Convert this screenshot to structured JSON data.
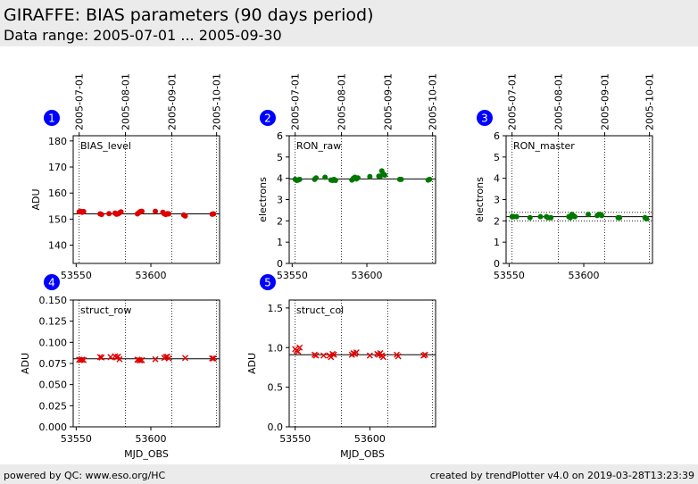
{
  "header": {
    "title": "GIRAFFE: BIAS parameters (90 days period)",
    "subtitle": "Data range: 2005-07-01 ... 2005-09-30"
  },
  "footer": {
    "left": "powered by QC: www.eso.org/HC",
    "right": "created by trendPlotter v4.0 on 2019-03-28T13:23:39"
  },
  "colors": {
    "red": "#dd0000",
    "green": "#007700",
    "badge": "#0000ff"
  },
  "chart_data": [
    {
      "badge": "1",
      "type": "scatter",
      "marker": "dot",
      "color": "#dd0000",
      "label": "BIAS_level",
      "ylabel": "ADU",
      "xlabel": "",
      "xlim": [
        53548,
        53646
      ],
      "ylim": [
        133,
        182
      ],
      "yticks": [
        140,
        150,
        160,
        170,
        180
      ],
      "ytick_labels": [
        "140",
        "150",
        "160",
        "170",
        "180"
      ],
      "xticks": [
        53550,
        53600
      ],
      "xtick_labels": [
        "53550",
        "53600"
      ],
      "date_ticks": [
        53552,
        53583,
        53614,
        53644
      ],
      "date_labels": [
        "2005-07-01",
        "2005-08-01",
        "2005-09-01",
        "2005-10-01"
      ],
      "hlines": [
        152
      ],
      "points": [
        [
          53552,
          152.8
        ],
        [
          53553,
          153
        ],
        [
          53554,
          152.6
        ],
        [
          53555,
          152.9
        ],
        [
          53566,
          152
        ],
        [
          53567,
          151.8
        ],
        [
          53572,
          152.1
        ],
        [
          53576,
          152.3
        ],
        [
          53577,
          151.9
        ],
        [
          53578,
          152
        ],
        [
          53579,
          152.4
        ],
        [
          53580,
          152.8
        ],
        [
          53591,
          152
        ],
        [
          53592,
          152.5
        ],
        [
          53593,
          152.9
        ],
        [
          53594,
          153
        ],
        [
          53603,
          153
        ],
        [
          53608,
          152.6
        ],
        [
          53609,
          152
        ],
        [
          53610,
          151.8
        ],
        [
          53611,
          152.1
        ],
        [
          53612,
          152
        ],
        [
          53622,
          151.6
        ],
        [
          53623,
          151.2
        ],
        [
          53641,
          151.9
        ],
        [
          53642,
          152
        ]
      ]
    },
    {
      "badge": "2",
      "type": "scatter",
      "marker": "dot",
      "color": "#007700",
      "label": "RON_raw",
      "ylabel": "electrons",
      "xlabel": "",
      "xlim": [
        53548,
        53646
      ],
      "ylim": [
        0,
        6
      ],
      "yticks": [
        0,
        1,
        2,
        3,
        4,
        5,
        6
      ],
      "ytick_labels": [
        "0",
        "1",
        "2",
        "3",
        "4",
        "5",
        "6"
      ],
      "xticks": [
        53550,
        53600
      ],
      "xtick_labels": [
        "53550",
        "53600"
      ],
      "date_ticks": [
        53552,
        53583,
        53614,
        53644
      ],
      "date_labels": [
        "2005-07-01",
        "2005-08-01",
        "2005-09-01",
        "2005-10-01"
      ],
      "hlines": [
        3.97
      ],
      "points": [
        [
          53552,
          3.95
        ],
        [
          53553,
          3.9
        ],
        [
          53554,
          3.92
        ],
        [
          53555,
          3.95
        ],
        [
          53565,
          3.95
        ],
        [
          53566,
          4.02
        ],
        [
          53572,
          4.05
        ],
        [
          53576,
          3.92
        ],
        [
          53577,
          3.9
        ],
        [
          53578,
          3.95
        ],
        [
          53579,
          3.9
        ],
        [
          53590,
          3.92
        ],
        [
          53591,
          4.0
        ],
        [
          53592,
          4.05
        ],
        [
          53593,
          3.97
        ],
        [
          53594,
          4.02
        ],
        [
          53602,
          4.08
        ],
        [
          53608,
          4.1
        ],
        [
          53609,
          4.1
        ],
        [
          53610,
          4.35
        ],
        [
          53611,
          4.2
        ],
        [
          53612,
          4.15
        ],
        [
          53622,
          3.95
        ],
        [
          53623,
          3.95
        ],
        [
          53641,
          3.92
        ],
        [
          53642,
          3.95
        ]
      ]
    },
    {
      "badge": "3",
      "type": "scatter",
      "marker": "dot",
      "color": "#007700",
      "label": "RON_master",
      "ylabel": "electrons",
      "xlabel": "",
      "xlim": [
        53548,
        53646
      ],
      "ylim": [
        0,
        6
      ],
      "yticks": [
        0,
        1,
        2,
        3,
        4,
        5,
        6
      ],
      "ytick_labels": [
        "0",
        "1",
        "2",
        "3",
        "4",
        "5",
        "6"
      ],
      "xticks": [
        53550,
        53600
      ],
      "xtick_labels": [
        "53550",
        "53600"
      ],
      "date_ticks": [
        53552,
        53583,
        53614,
        53644
      ],
      "date_labels": [
        "2005-07-01",
        "2005-08-01",
        "2005-09-01",
        "2005-10-01"
      ],
      "hlines": [
        2.2
      ],
      "dotted_hlines": [
        2.4,
        2.0
      ],
      "points": [
        [
          53552,
          2.2
        ],
        [
          53553,
          2.2
        ],
        [
          53555,
          2.2
        ],
        [
          53564,
          2.15
        ],
        [
          53571,
          2.2
        ],
        [
          53575,
          2.2
        ],
        [
          53576,
          2.15
        ],
        [
          53578,
          2.15
        ],
        [
          53590,
          2.2
        ],
        [
          53591,
          2.15
        ],
        [
          53592,
          2.3
        ],
        [
          53593,
          2.25
        ],
        [
          53594,
          2.2
        ],
        [
          53603,
          2.3
        ],
        [
          53609,
          2.25
        ],
        [
          53610,
          2.3
        ],
        [
          53611,
          2.3
        ],
        [
          53612,
          2.25
        ],
        [
          53623,
          2.15
        ],
        [
          53624,
          2.15
        ],
        [
          53641,
          2.15
        ],
        [
          53642,
          2.1
        ]
      ]
    },
    {
      "badge": "4",
      "type": "scatter",
      "marker": "x",
      "color": "#dd0000",
      "label": "struct_row",
      "ylabel": "ADU",
      "xlabel": "MJD_OBS",
      "xlim": [
        53548,
        53646
      ],
      "ylim": [
        0,
        0.15
      ],
      "yticks": [
        0,
        0.025,
        0.05,
        0.075,
        0.1,
        0.125,
        0.15
      ],
      "ytick_labels": [
        "0.000",
        "0.025",
        "0.050",
        "0.075",
        "0.100",
        "0.125",
        "0.150"
      ],
      "xticks": [
        53550,
        53600
      ],
      "xtick_labels": [
        "53550",
        "53600"
      ],
      "date_ticks": [
        53552,
        53583,
        53614,
        53644
      ],
      "date_labels": [],
      "hlines": [
        0.0805
      ],
      "points": [
        [
          53552,
          0.0795
        ],
        [
          53553,
          0.079
        ],
        [
          53554,
          0.0795
        ],
        [
          53555,
          0.079
        ],
        [
          53566,
          0.0825
        ],
        [
          53567,
          0.082
        ],
        [
          53573,
          0.0825
        ],
        [
          53576,
          0.0835
        ],
        [
          53577,
          0.082
        ],
        [
          53578,
          0.083
        ],
        [
          53579,
          0.08
        ],
        [
          53591,
          0.0795
        ],
        [
          53592,
          0.079
        ],
        [
          53593,
          0.0785
        ],
        [
          53594,
          0.079
        ],
        [
          53603,
          0.08
        ],
        [
          53609,
          0.0815
        ],
        [
          53610,
          0.0825
        ],
        [
          53611,
          0.083
        ],
        [
          53612,
          0.081
        ],
        [
          53623,
          0.0815
        ],
        [
          53641,
          0.081
        ],
        [
          53642,
          0.081
        ]
      ]
    },
    {
      "badge": "5",
      "type": "scatter",
      "marker": "x",
      "color": "#dd0000",
      "label": "struct_col",
      "ylabel": "ADU",
      "xlabel": "MJD_OBS",
      "xlim": [
        53546,
        53644
      ],
      "ylim": [
        0,
        1.6
      ],
      "yticks": [
        0,
        0.5,
        1.0,
        1.5
      ],
      "ytick_labels": [
        "0.0",
        "0.5",
        "1.0",
        "1.5"
      ],
      "xticks": [
        53550,
        53600
      ],
      "xtick_labels": [
        "53550",
        "53600"
      ],
      "date_ticks": [
        53550,
        53581,
        53612,
        53642
      ],
      "date_labels": [],
      "hlines": [
        0.91
      ],
      "points": [
        [
          53550,
          0.98
        ],
        [
          53551,
          0.96
        ],
        [
          53552,
          0.95
        ],
        [
          53553,
          1.0
        ],
        [
          53563,
          0.91
        ],
        [
          53564,
          0.9
        ],
        [
          53569,
          0.9
        ],
        [
          53573,
          0.9
        ],
        [
          53574,
          0.88
        ],
        [
          53575,
          0.92
        ],
        [
          53576,
          0.91
        ],
        [
          53588,
          0.91
        ],
        [
          53589,
          0.93
        ],
        [
          53590,
          0.92
        ],
        [
          53591,
          0.94
        ],
        [
          53600,
          0.9
        ],
        [
          53605,
          0.92
        ],
        [
          53606,
          0.91
        ],
        [
          53607,
          0.93
        ],
        [
          53608,
          0.9
        ],
        [
          53609,
          0.88
        ],
        [
          53618,
          0.91
        ],
        [
          53619,
          0.89
        ],
        [
          53636,
          0.9
        ],
        [
          53637,
          0.91
        ]
      ]
    }
  ]
}
